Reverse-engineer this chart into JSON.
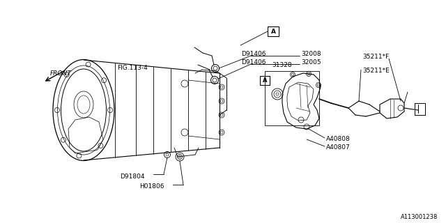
{
  "bg_color": "#ffffff",
  "border_color": "#000000",
  "line_color": "#000000",
  "text_color": "#000000",
  "fig_ref": "FIG.113-4",
  "front_label": "FRONT",
  "diagram_id": "A113001238",
  "label_font": 6.5,
  "small_font": 6.0,
  "parts": {
    "32008": "32008",
    "32005": "32005",
    "D91406": "D91406",
    "31328": "31328",
    "35211F": "35211*F",
    "35211E": "35211*E",
    "A40808": "A40808",
    "A40807": "A40807",
    "D91804": "D91804",
    "H01806": "H01806"
  }
}
